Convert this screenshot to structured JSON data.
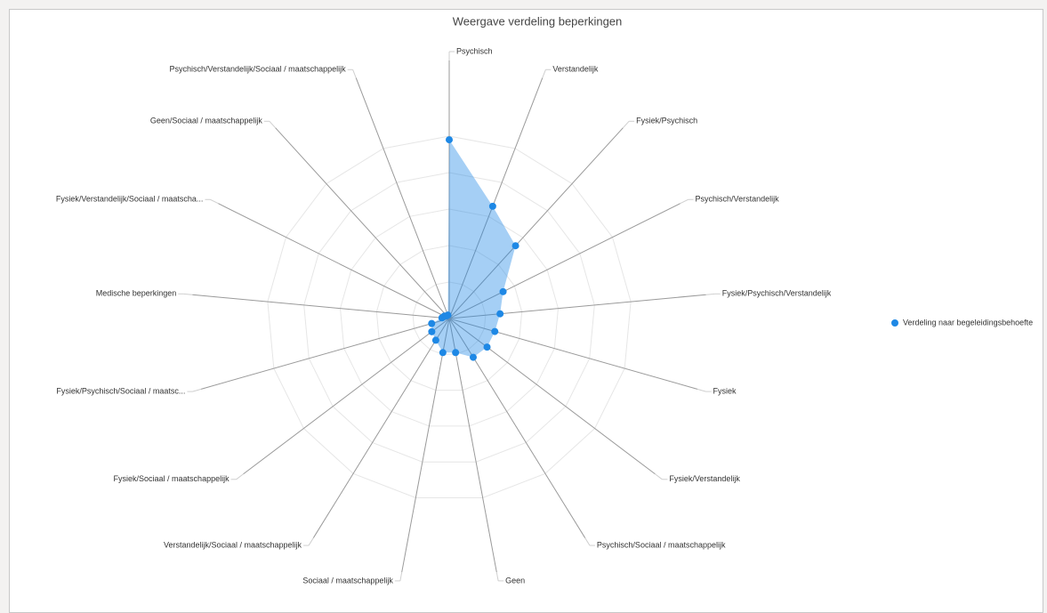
{
  "chart_data": {
    "type": "radar",
    "title": "Weergave verdeling beperkingen",
    "categories": [
      "Psychisch",
      "Verstandelijk",
      "Fysiek/Psychisch",
      "Psychisch/Verstandelijk",
      "Fysiek/Psychisch/Verstandelijk",
      "Fysiek",
      "Fysiek/Verstandelijk",
      "Psychisch/Sociaal / maatschappelijk",
      "Geen",
      "Sociaal / maatschappelijk",
      "Verstandelijk/Sociaal / maatschappelijk",
      "Fysiek/Sociaal / maatschappelijk",
      "Fysiek/Psychisch/Sociaal / maatsc...",
      "Medische beperkingen",
      "Fysiek/Verstandelijk/Sociaal / maatscha...",
      "Geen/Sociaal / maatschappelijk",
      "Psychisch/Verstandelijk/Sociaal / maatschappelijk"
    ],
    "series": [
      {
        "name": "Verdeling naar begeleidingsbehoefte",
        "color": "#1e88e5",
        "values": [
          98,
          66,
          54,
          33,
          28,
          26,
          26,
          25,
          19,
          19,
          14,
          12,
          10,
          4,
          3,
          2,
          2
        ]
      }
    ],
    "ylim": [
      0,
      100
    ],
    "yticks": [
      0,
      20,
      40,
      60,
      80,
      100
    ],
    "grid": true,
    "legend": "right"
  }
}
